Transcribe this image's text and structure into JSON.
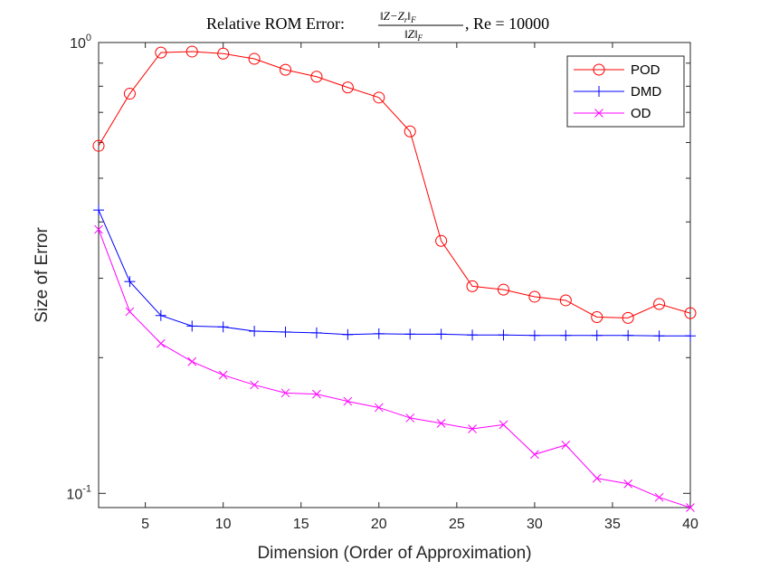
{
  "chart_data": {
    "type": "line",
    "title": {
      "prefix": "Relative ROM Error: ",
      "numerator": "‖Z−Z",
      "numerator_sub": "r",
      "numerator_end": "‖",
      "numerator_sub2": "F",
      "denominator": "‖Z‖",
      "denominator_sub": "F",
      "suffix": ", Re = 10000"
    },
    "xlabel": "Dimension (Order of Approximation)",
    "ylabel": "Size of Error",
    "xlim": [
      2,
      40
    ],
    "ylim": [
      0.093,
      1.0
    ],
    "yscale": "log",
    "x_ticks": [
      5,
      10,
      15,
      20,
      25,
      30,
      35,
      40
    ],
    "y_ticks": [
      {
        "value": 0.1,
        "base": "10",
        "exp": "-1"
      },
      {
        "value": 1.0,
        "base": "10",
        "exp": "0"
      }
    ],
    "legend_position": "top-right",
    "x": [
      2,
      4,
      6,
      8,
      10,
      12,
      14,
      16,
      18,
      20,
      22,
      24,
      26,
      28,
      30,
      32,
      34,
      36,
      38,
      40
    ],
    "series": [
      {
        "name": "POD",
        "color": "#ff0000",
        "marker": "circle",
        "values": [
          0.59,
          0.77,
          0.95,
          0.955,
          0.945,
          0.92,
          0.87,
          0.84,
          0.795,
          0.755,
          0.635,
          0.363,
          0.288,
          0.283,
          0.273,
          0.268,
          0.246,
          0.245,
          0.263,
          0.251
        ]
      },
      {
        "name": "DMD",
        "color": "#0000ff",
        "marker": "plus",
        "values": [
          0.425,
          0.295,
          0.248,
          0.235,
          0.234,
          0.229,
          0.228,
          0.227,
          0.225,
          0.226,
          0.2255,
          0.2255,
          0.2245,
          0.2245,
          0.224,
          0.224,
          0.224,
          0.224,
          0.2235,
          0.2235
        ]
      },
      {
        "name": "OD",
        "color": "#ff00ff",
        "marker": "x",
        "values": [
          0.385,
          0.253,
          0.215,
          0.196,
          0.183,
          0.174,
          0.167,
          0.166,
          0.16,
          0.155,
          0.147,
          0.143,
          0.139,
          0.142,
          0.122,
          0.128,
          0.108,
          0.105,
          0.098,
          0.093
        ]
      }
    ],
    "grid": false
  }
}
